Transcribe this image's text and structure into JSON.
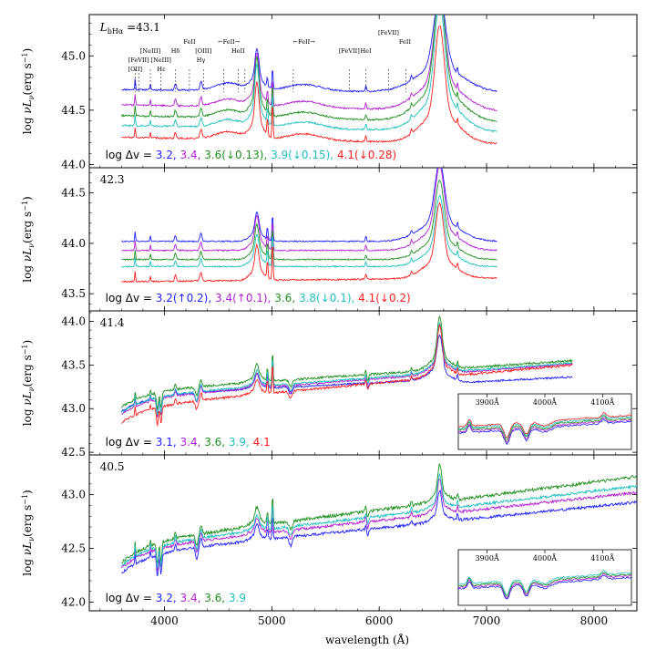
{
  "chart_data": {
    "type": "line",
    "xlabel": "wavelength (Å)",
    "xlim": [
      3300,
      8400
    ],
    "x_ticks": [
      4000,
      5000,
      6000,
      7000,
      8000
    ],
    "ylabel_html": "log νL<sub>ν</sub>(erg s<sup>−1</sup>)",
    "ylabel_parts": [
      "log ",
      "ν",
      "L",
      "ν",
      "(erg s",
      "−1",
      ")"
    ],
    "line_labels": [
      {
        "text": "[OII]",
        "x": 3727,
        "row": 3
      },
      {
        "text": "[FeVII]",
        "x": 3760,
        "row": 2
      },
      {
        "text": "[NeIII]",
        "x": 3869,
        "row": 1
      },
      {
        "text": "[NeIII]",
        "x": 3968,
        "row": 2
      },
      {
        "text": "Hε",
        "x": 3970,
        "row": 3
      },
      {
        "text": "Hδ",
        "x": 4102,
        "row": 1
      },
      {
        "text": "FeII",
        "x": 4233,
        "row": 0
      },
      {
        "text": "[OIII]",
        "x": 4363,
        "row": 1
      },
      {
        "text": "Hγ",
        "x": 4340,
        "row": 2
      },
      {
        "text": "←FeII→",
        "x": 4600,
        "row": 0
      },
      {
        "text": "HeII",
        "x": 4686,
        "row": 1
      },
      {
        "text": "←FeII→",
        "x": 5300,
        "row": 0
      },
      {
        "text": "[FeVII]",
        "x": 5721,
        "row": 1
      },
      {
        "text": "HeI",
        "x": 5876,
        "row": 1
      },
      {
        "text": "[FeVII]",
        "x": 6087,
        "row": -1
      },
      {
        "text": "FeII",
        "x": 6240,
        "row": 0
      }
    ],
    "line_marker_x": [
      3727,
      3760,
      3869,
      3968,
      4102,
      4233,
      4363,
      4550,
      4686,
      4750,
      5200,
      5721,
      5876,
      6087,
      6247
    ],
    "panels": [
      {
        "lum_label": "43.1",
        "lum_prefix": "L",
        "lum_sub": "bHα",
        "lum_eq": " =",
        "ylim": [
          43.97,
          45.38
        ],
        "yticks": [
          44.0,
          44.5,
          45.0
        ],
        "ytick_labels": [
          "44.0",
          "44.5",
          "45.0"
        ],
        "legend_prefix": "log Δv =",
        "x_end": 7100,
        "series": [
          {
            "name": "3.2,",
            "color": "#1f1fff",
            "base": 44.69,
            "slope": -0.04,
            "noise": 0.015,
            "ha": 0.65,
            "ha_w": 55,
            "hb": 0.26,
            "o3": 0.2,
            "extra": 0.0
          },
          {
            "name": "3.4,",
            "color": "#b01fd0",
            "base": 44.55,
            "slope": -0.08,
            "noise": 0.015,
            "ha": 0.78,
            "ha_w": 50,
            "hb": 0.34,
            "o3": 0.25,
            "extra": 0.0
          },
          {
            "name": "3.6(↓0.13),",
            "color": "#1f8f1f",
            "base": 44.45,
            "slope": -0.08,
            "noise": 0.015,
            "ha": 0.88,
            "ha_w": 48,
            "hb": 0.38,
            "o3": 0.3,
            "extra": 0.0
          },
          {
            "name": "3.9(↓0.15),",
            "color": "#1fbfbf",
            "base": 44.36,
            "slope": -0.08,
            "noise": 0.015,
            "ha": 0.88,
            "ha_w": 45,
            "hb": 0.4,
            "o3": 0.32,
            "extra": 0.0
          },
          {
            "name": "4.1(↓0.28)",
            "color": "#ff1f1f",
            "base": 44.25,
            "slope": -0.08,
            "noise": 0.015,
            "ha": 0.8,
            "ha_w": 42,
            "hb": 0.36,
            "o3": 0.34,
            "extra": 0.0
          }
        ],
        "inset": null
      },
      {
        "lum_label": "42.3",
        "ylim": [
          43.33,
          44.75
        ],
        "yticks": [
          43.5,
          44.0,
          44.5
        ],
        "ytick_labels": [
          "43.5",
          "44.0",
          "44.5"
        ],
        "legend_prefix": "log Δv =",
        "x_end": 7100,
        "series": [
          {
            "name": "3.2(↑0.2),",
            "color": "#1f1fff",
            "base": 44.02,
            "slope": 0.0,
            "noise": 0.012,
            "ha": 0.58,
            "ha_w": 45,
            "hb": 0.2,
            "o3": 0.27,
            "extra": 0.0
          },
          {
            "name": "3.4(↑0.1),",
            "color": "#b01fd0",
            "base": 43.93,
            "slope": 0.0,
            "noise": 0.012,
            "ha": 0.62,
            "ha_w": 42,
            "hb": 0.24,
            "o3": 0.3,
            "extra": 0.0
          },
          {
            "name": "3.6,",
            "color": "#1f8f1f",
            "base": 43.84,
            "slope": 0.0,
            "noise": 0.012,
            "ha": 0.58,
            "ha_w": 40,
            "hb": 0.24,
            "o3": 0.32,
            "extra": 0.0
          },
          {
            "name": "3.8(↓0.1),",
            "color": "#1fbfbf",
            "base": 43.77,
            "slope": 0.0,
            "noise": 0.012,
            "ha": 0.52,
            "ha_w": 38,
            "hb": 0.22,
            "o3": 0.34,
            "extra": 0.0
          },
          {
            "name": "4.1(↓0.2)",
            "color": "#ff1f1f",
            "base": 43.62,
            "slope": 0.05,
            "noise": 0.015,
            "ha": 0.55,
            "ha_w": 36,
            "hb": 0.24,
            "o3": 0.38,
            "extra": 0.0
          }
        ],
        "inset": null
      },
      {
        "lum_label": "41.4",
        "ylim": [
          42.47,
          44.12
        ],
        "yticks": [
          42.5,
          43.0,
          43.5,
          44.0
        ],
        "ytick_labels": [
          "42.5",
          "43.0",
          "43.5",
          "44.0"
        ],
        "legend_prefix": "log Δv =",
        "x_end": 7800,
        "series": [
          {
            "name": "3.1,",
            "color": "#1f1fff",
            "base": 43.15,
            "slope": 0.3,
            "noise": 0.02,
            "ha": 0.38,
            "ha_w": 25,
            "hb": 0.12,
            "o3": 0.3,
            "extra": -0.05
          },
          {
            "name": "3.4,",
            "color": "#b01fd0",
            "base": 43.12,
            "slope": 0.45,
            "noise": 0.02,
            "ha": 0.42,
            "ha_w": 22,
            "hb": 0.12,
            "o3": 0.32,
            "extra": 0.0
          },
          {
            "name": "3.6,",
            "color": "#1f8f1f",
            "base": 43.2,
            "slope": 0.4,
            "noise": 0.025,
            "ha": 0.45,
            "ha_w": 22,
            "hb": 0.14,
            "o3": 0.34,
            "extra": 0.0
          },
          {
            "name": "3.9,",
            "color": "#1fbfbf",
            "base": 43.14,
            "slope": 0.44,
            "noise": 0.02,
            "ha": 0.42,
            "ha_w": 22,
            "hb": 0.13,
            "o3": 0.33,
            "extra": 0.0
          },
          {
            "name": "4.1",
            "color": "#ff1f1f",
            "base": 43.02,
            "slope": 0.55,
            "noise": 0.025,
            "ha": 0.44,
            "ha_w": 22,
            "hb": 0.12,
            "o3": 0.34,
            "extra": 0.0
          }
        ],
        "inset": {
          "xlim": [
            3850,
            4150
          ],
          "x_ticks": [
            3900,
            4000,
            4100
          ],
          "x_tick_labels": [
            "3900Å",
            "4000Å",
            "4100Å"
          ]
        }
      },
      {
        "lum_label": "40.5",
        "ylim": [
          41.92,
          43.37
        ],
        "yticks": [
          42.0,
          42.5,
          43.0
        ],
        "ytick_labels": [
          "42.0",
          "42.5",
          "43.0"
        ],
        "legend_prefix": "log Δv =",
        "x_end": 8400,
        "series": [
          {
            "name": "3.2,",
            "color": "#1f1fff",
            "base": 42.45,
            "slope": 0.48,
            "noise": 0.025,
            "ha": 0.22,
            "ha_w": 18,
            "hb": 0.1,
            "o3": 0.22,
            "extra": 0.0
          },
          {
            "name": "3.4,",
            "color": "#b01fd0",
            "base": 42.5,
            "slope": 0.52,
            "noise": 0.025,
            "ha": 0.24,
            "ha_w": 18,
            "hb": 0.1,
            "o3": 0.24,
            "extra": 0.0
          },
          {
            "name": "3.6,",
            "color": "#1f8f1f",
            "base": 42.55,
            "slope": 0.62,
            "noise": 0.03,
            "ha": 0.26,
            "ha_w": 18,
            "hb": 0.12,
            "o3": 0.26,
            "extra": 0.0
          },
          {
            "name": "3.9",
            "color": "#1fbfbf",
            "base": 42.52,
            "slope": 0.56,
            "noise": 0.025,
            "ha": 0.24,
            "ha_w": 18,
            "hb": 0.1,
            "o3": 0.24,
            "extra": 0.0
          }
        ],
        "inset": {
          "xlim": [
            3850,
            4150
          ],
          "x_ticks": [
            3900,
            4000,
            4100
          ],
          "x_tick_labels": [
            "3900Å",
            "4000Å",
            "4100Å"
          ]
        }
      }
    ]
  }
}
